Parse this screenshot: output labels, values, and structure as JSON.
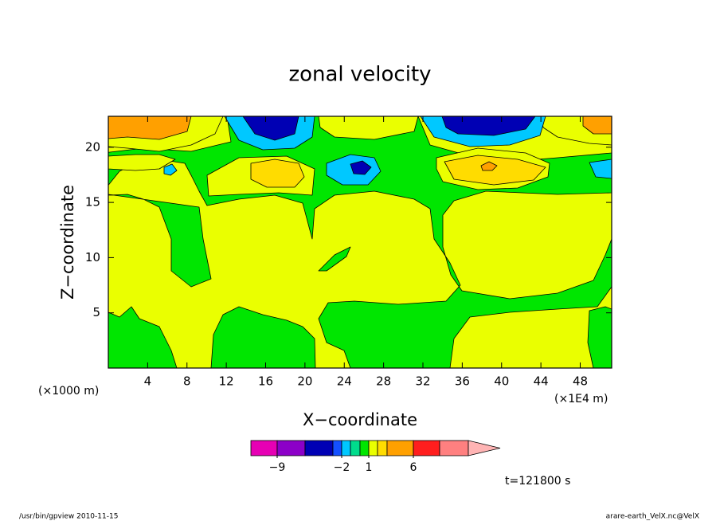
{
  "chart_data": {
    "type": "contour",
    "title": "zonal velocity",
    "x_label": "X−coordinate",
    "y_label": "Z−coordinate",
    "x_unit_label": "(×1000 m)",
    "x_scale_label": "(×1E4 m)",
    "time_label": "t=121800 s",
    "footer_left": "/usr/bin/gpview  2010-11-15",
    "footer_right": "arare-earth_VelX.nc@VelX",
    "xlim": [
      0,
      51.2
    ],
    "ylim": [
      0,
      22.8
    ],
    "xticks": [
      4,
      8,
      12,
      16,
      20,
      24,
      28,
      32,
      36,
      40,
      44,
      48
    ],
    "yticks": [
      5,
      10,
      15,
      20
    ],
    "colorbar": {
      "levels": [
        -9,
        -6,
        -3,
        -2,
        -1,
        0,
        1,
        2,
        3,
        6,
        9,
        12
      ],
      "colors": [
        "#e600b4",
        "#8c00c8",
        "#0000b4",
        "#1450ff",
        "#00c8ff",
        "#00dc8c",
        "#00e600",
        "#eaff00",
        "#ffdc00",
        "#ffa000",
        "#ff1e1e",
        "#ff8080",
        "#ffb4b4"
      ],
      "ticks": [
        {
          "value": -9,
          "label": "−9"
        },
        {
          "value": -2,
          "label": "−2"
        },
        1,
        6
      ]
    }
  }
}
